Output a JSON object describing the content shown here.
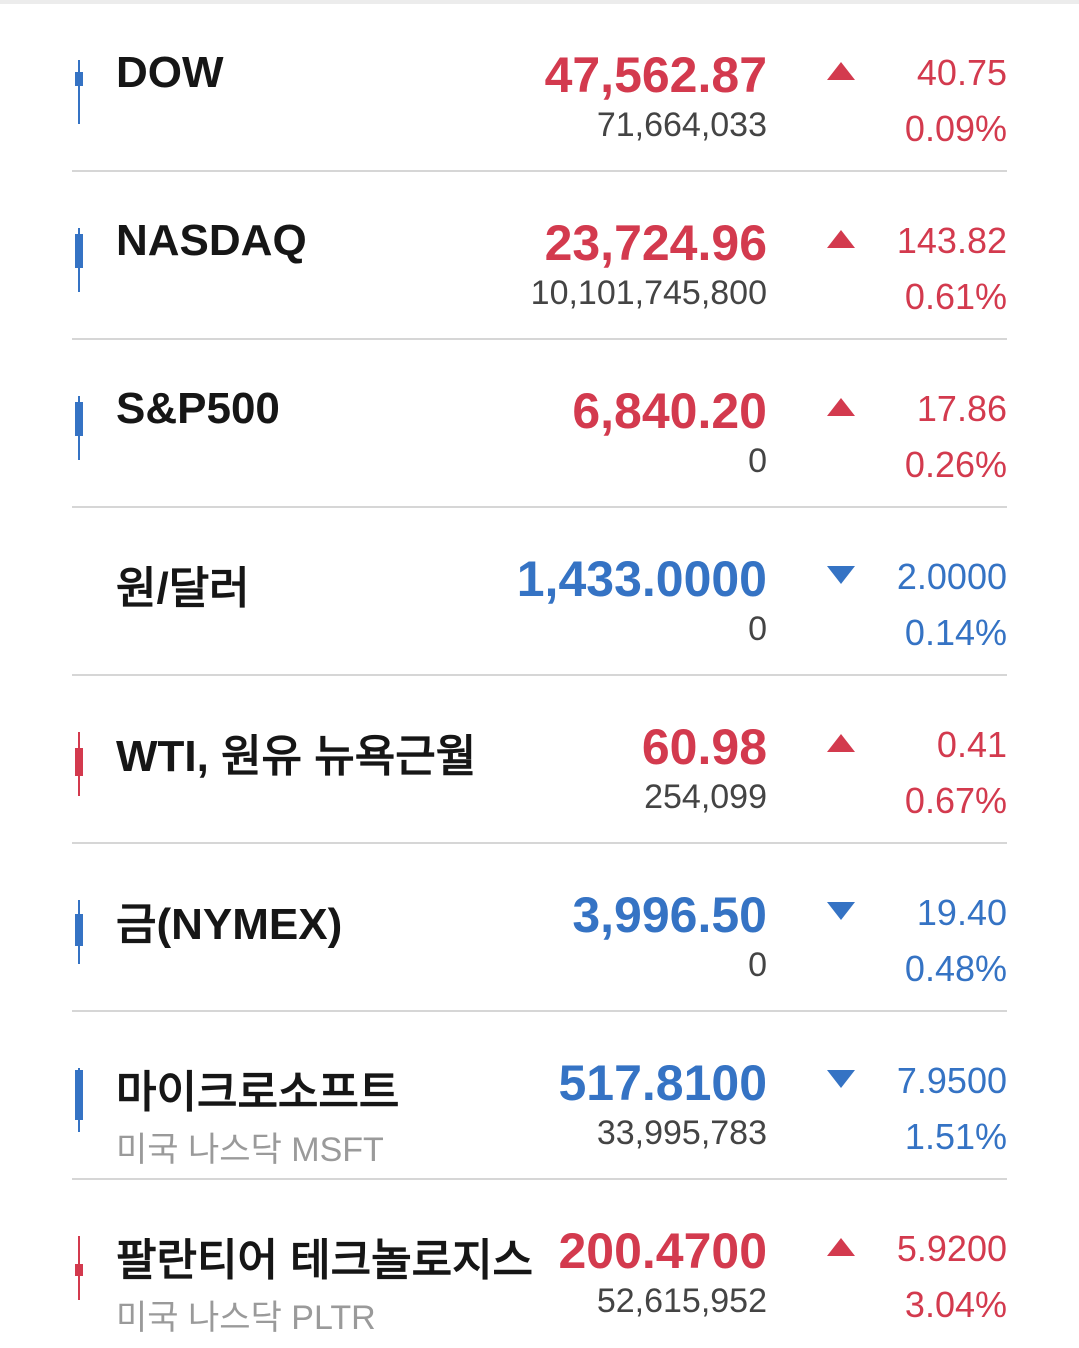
{
  "colors": {
    "up": "#d33a4e",
    "down": "#3573c4",
    "text": "#161616",
    "sub": "#9a9a9a"
  },
  "rows": [
    {
      "name": "DOW",
      "sub": "",
      "price": "47,562.87",
      "volume": "71,664,033",
      "direction": "up",
      "change": "40.75",
      "pct": "0.09%",
      "candle": "blue"
    },
    {
      "name": "NASDAQ",
      "sub": "",
      "price": "23,724.96",
      "volume": "10,101,745,800",
      "direction": "up",
      "change": "143.82",
      "pct": "0.61%",
      "candle": "blue"
    },
    {
      "name": "S&P500",
      "sub": "",
      "price": "6,840.20",
      "volume": "0",
      "direction": "up",
      "change": "17.86",
      "pct": "0.26%",
      "candle": "blue"
    },
    {
      "name": "원/달러",
      "sub": "",
      "price": "1,433.0000",
      "volume": "0",
      "direction": "down",
      "change": "2.0000",
      "pct": "0.14%",
      "candle": "none"
    },
    {
      "name": "WTI, 원유 뉴욕근월",
      "sub": "",
      "price": "60.98",
      "volume": "254,099",
      "direction": "up",
      "change": "0.41",
      "pct": "0.67%",
      "candle": "red"
    },
    {
      "name": "금(NYMEX)",
      "sub": "",
      "price": "3,996.50",
      "volume": "0",
      "direction": "down",
      "change": "19.40",
      "pct": "0.48%",
      "candle": "blue"
    },
    {
      "name": "마이크로소프트",
      "sub": "미국 나스닥 MSFT",
      "price": "517.8100",
      "volume": "33,995,783",
      "direction": "down",
      "change": "7.9500",
      "pct": "1.51%",
      "candle": "blue"
    },
    {
      "name": "팔란티어 테크놀로지스",
      "sub": "미국 나스닥 PLTR",
      "price": "200.4700",
      "volume": "52,615,952",
      "direction": "up",
      "change": "5.9200",
      "pct": "3.04%",
      "candle": "red"
    }
  ]
}
